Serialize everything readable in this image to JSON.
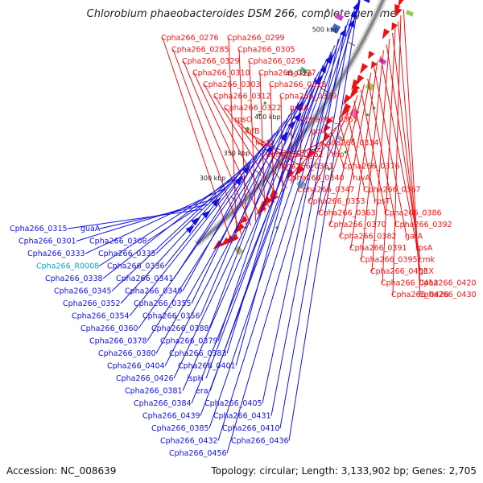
{
  "title": "Chlorobium phaeobacteroides DSM 266, complete genome",
  "footer": {
    "accession": "Accession: NC_008639",
    "topology": "Topology: circular; Length: 3,133,902 bp; Genes: 2,705"
  },
  "ticks": [
    "300 kbp",
    "350 kbp",
    "400 kbp",
    "450 kbp",
    "500 kbp"
  ],
  "colors": {
    "forward": "#ee1111",
    "reverse": "#1111dd",
    "rna": "#00aacc",
    "backbone": "#888888"
  },
  "labels_forward": [
    "Cpha266_0276",
    "Cpha266_0299",
    "Cpha266_0285",
    "Cpha266_0305",
    "Cpha266_0329",
    "Cpha266_0296",
    "Cpha266_0310",
    "Cpha266_0337",
    "Cpha266_0303",
    "Cpha266_0328",
    "Cpha266_0312",
    "Cpha266_0339",
    "Cpha266_0322",
    "nusA",
    "rpsO",
    "Cpha266_0365",
    "infB",
    "gmk",
    "hisS",
    "Cpha266_0334",
    "Cpha266_0362",
    "rho",
    "Cpha266_0361",
    "Cpha266_0376",
    "Cpha266_0340",
    "ruvA",
    "Cpha266_0347",
    "Cpha266_0367",
    "Cpha266_0353",
    "rpsT",
    "Cpha266_0363",
    "Cpha266_0386",
    "Cpha266_0370",
    "Cpha266_0392",
    "Cpha266_0382",
    "gatA",
    "Cpha266_0391",
    "rpsA",
    "Cpha266_0395",
    "cmk",
    "Cpha266_0403",
    "gltX",
    "Cpha266_0412",
    "Cpha266_0420",
    "Cpha266_0428",
    "Cpha266_0430"
  ],
  "labels_reverse": [
    "Cpha266_0315",
    "guaA",
    "Cpha266_0301",
    "Cpha266_0308",
    "Cpha266_0333",
    "Cpha266_0335",
    "Cpha266_R0008",
    "Cpha266_0336",
    "Cpha266_0338",
    "Cpha266_0341",
    "Cpha266_0345",
    "Cpha266_0349",
    "Cpha266_0352",
    "Cpha266_0355",
    "Cpha266_0354",
    "Cpha266_0356",
    "Cpha266_0360",
    "Cpha266_0388",
    "Cpha266_0378",
    "Cpha266_0379",
    "Cpha266_0380",
    "Cpha266_0383",
    "Cpha266_0404",
    "Cpha266_0401",
    "Cpha266_0426",
    "ispH",
    "Cpha266_0381",
    "era",
    "Cpha266_0384",
    "Cpha266_0405",
    "Cpha266_0439",
    "Cpha266_0431",
    "Cpha266_0385",
    "Cpha266_0410",
    "Cpha266_0432",
    "Cpha266_0436",
    "Cpha266_0456"
  ]
}
